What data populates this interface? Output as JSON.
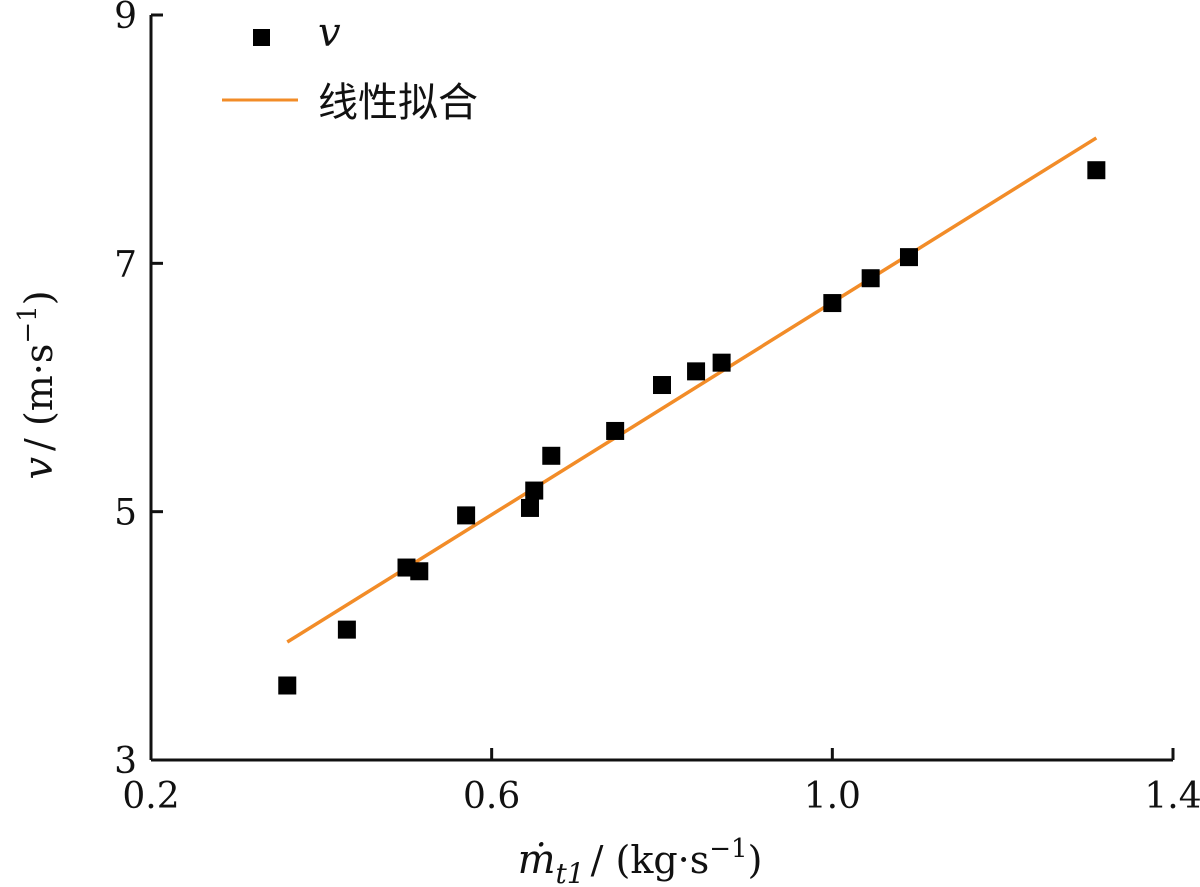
{
  "chart_data": {
    "type": "scatter",
    "title": "",
    "xlabel": {
      "main": "ṁ",
      "sub": "t1",
      "unit": "/ (kg·s",
      "sup": "−1",
      "close": ")"
    },
    "ylabel": {
      "main": "v",
      "unit": "/ (m·s",
      "sup": "−1",
      "close": ")"
    },
    "xlim": [
      0.2,
      1.4
    ],
    "ylim": [
      3,
      9
    ],
    "xticks": [
      0.2,
      0.6,
      1.0,
      1.4
    ],
    "xtick_labels": [
      "0.2",
      "0.6",
      "1.0",
      "1.4"
    ],
    "yticks": [
      3,
      5,
      7,
      9
    ],
    "ytick_labels": [
      "3",
      "5",
      "7",
      "9"
    ],
    "legend_position": "top-left",
    "series": [
      {
        "name": "v",
        "kind": "scatter",
        "marker": "square",
        "color": "#000000",
        "x": [
          0.36,
          0.43,
          0.5,
          0.515,
          0.57,
          0.645,
          0.65,
          0.67,
          0.745,
          0.8,
          0.84,
          0.87,
          1.0,
          1.045,
          1.09,
          1.31
        ],
        "y": [
          3.6,
          4.05,
          4.55,
          4.52,
          4.97,
          5.03,
          5.17,
          5.45,
          5.65,
          6.02,
          6.13,
          6.2,
          6.68,
          6.88,
          7.05,
          7.75
        ]
      },
      {
        "name": "线性拟合",
        "kind": "line",
        "color": "#F28C28",
        "x": [
          0.36,
          1.31
        ],
        "y": [
          3.95,
          8.01
        ]
      }
    ]
  }
}
